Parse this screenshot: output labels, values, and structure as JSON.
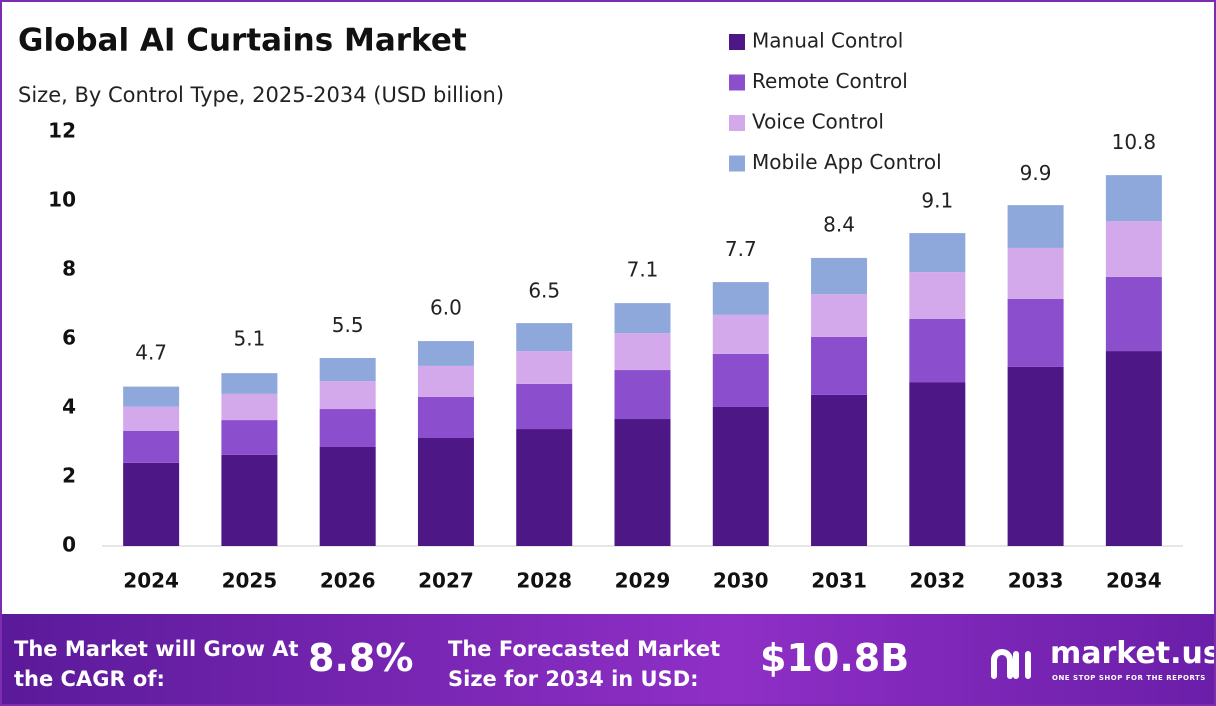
{
  "chart_data": {
    "type": "stacked-bar",
    "title": "Global AI Curtains Market",
    "subtitle": "Size, By Control Type, 2025-2034 (USD billion)",
    "categories": [
      "2024",
      "2025",
      "2026",
      "2027",
      "2028",
      "2029",
      "2030",
      "2031",
      "2032",
      "2033",
      "2034"
    ],
    "series": [
      {
        "name": "Manual Control",
        "color": "#4e1786",
        "values": [
          2.41,
          2.64,
          2.87,
          3.13,
          3.39,
          3.68,
          4.03,
          4.38,
          4.75,
          5.19,
          5.65
        ]
      },
      {
        "name": "Remote Control",
        "color": "#8b4fce",
        "values": [
          0.93,
          1.01,
          1.1,
          1.19,
          1.31,
          1.42,
          1.54,
          1.68,
          1.83,
          1.97,
          2.15
        ]
      },
      {
        "name": "Voice Control",
        "color": "#d4a9ec",
        "values": [
          0.7,
          0.76,
          0.81,
          0.9,
          0.95,
          1.07,
          1.13,
          1.24,
          1.36,
          1.48,
          1.62
        ]
      },
      {
        "name": "Mobile App Control",
        "color": "#8ea8dc",
        "values": [
          0.58,
          0.6,
          0.67,
          0.72,
          0.81,
          0.87,
          0.95,
          1.05,
          1.13,
          1.24,
          1.33
        ]
      }
    ],
    "totals": [
      4.7,
      5.1,
      5.5,
      6.0,
      6.5,
      7.1,
      7.7,
      8.4,
      9.1,
      9.9,
      10.8
    ],
    "total_labels": [
      "4.7",
      "5.1",
      "5.5",
      "6.0",
      "6.5",
      "7.1",
      "7.7",
      "8.4",
      "9.1",
      "9.9",
      "10.8"
    ],
    "ylim": [
      0,
      12
    ],
    "yticks": [
      0,
      2,
      4,
      6,
      8,
      10,
      12
    ],
    "grid": false,
    "legend": "top-right"
  },
  "footer": {
    "cagr_text": "The Market will Grow At the CAGR of:",
    "cagr_value": "8.8%",
    "forecast_text": "The Forecasted Market Size for 2034 in USD:",
    "forecast_value": "$10.8B",
    "brand": "market.us",
    "tagline": "ONE STOP SHOP FOR THE REPORTS"
  }
}
